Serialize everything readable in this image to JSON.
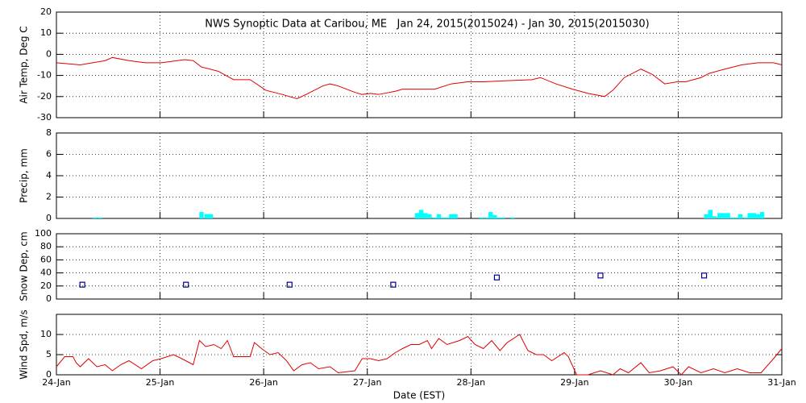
{
  "chart_data": [
    {
      "type": "line",
      "title": "NWS Synoptic Data at Caribou, ME   Jan 24, 2015(2015024) - Jan 30, 2015(2015030)",
      "ylabel": "Air Temp, Deg C",
      "color": "#e00000",
      "x": [
        24.0,
        24.23,
        24.47,
        24.54,
        24.7,
        24.86,
        25.01,
        25.24,
        25.32,
        25.4,
        25.56,
        25.71,
        25.87,
        26.02,
        26.18,
        26.32,
        26.41,
        26.57,
        26.64,
        26.72,
        26.88,
        26.95,
        27.03,
        27.11,
        27.27,
        27.34,
        27.65,
        27.81,
        27.97,
        28.12,
        28.35,
        28.59,
        28.67,
        28.82,
        28.98,
        29.13,
        29.29,
        29.37,
        29.48,
        29.64,
        29.75,
        29.87,
        29.99,
        30.07,
        30.22,
        30.3,
        30.45,
        30.61,
        30.77,
        30.92,
        31.0
      ],
      "values": [
        -4,
        -5,
        -3,
        -1.5,
        -3,
        -4,
        -4,
        -2.5,
        -3,
        -6,
        -8,
        -12,
        -12,
        -17,
        -19,
        -21,
        -19,
        -15,
        -14,
        -15,
        -18,
        -19,
        -18.5,
        -19,
        -17.5,
        -16.5,
        -16.5,
        -14,
        -13,
        -13,
        -12.5,
        -12,
        -11,
        -14,
        -16.5,
        -18.5,
        -20,
        -17,
        -11,
        -7,
        -9.5,
        -14,
        -13,
        -13,
        -11,
        -9,
        -7,
        -5,
        -4,
        -4,
        -5
      ],
      "xlim": [
        24,
        31
      ],
      "xticks": [
        24,
        25,
        26,
        27,
        28,
        29,
        30,
        31
      ],
      "ylim": [
        -30,
        20
      ],
      "yticks": [
        -30,
        -20,
        -10,
        0,
        10,
        20
      ],
      "grid": true
    },
    {
      "type": "bar",
      "ylabel": "Precip, mm",
      "color": "#00ffff",
      "x": [
        24.37,
        24.42,
        25.4,
        25.45,
        25.49,
        27.48,
        27.52,
        27.56,
        27.6,
        27.65,
        27.69,
        27.73,
        27.77,
        27.81,
        27.85,
        28.1,
        28.15,
        28.19,
        28.23,
        28.27,
        28.31,
        28.4,
        30.27,
        30.31,
        30.35,
        30.4,
        30.44,
        30.48,
        30.52,
        30.56,
        30.6,
        30.65,
        30.69,
        30.73,
        30.77,
        30.81
      ],
      "values": [
        0.1,
        0.1,
        0.6,
        0.4,
        0.4,
        0.5,
        0.8,
        0.5,
        0.4,
        0.1,
        0.4,
        0.1,
        0.1,
        0.4,
        0.4,
        0.1,
        0.1,
        0.6,
        0.3,
        0.1,
        0.1,
        0.1,
        0.4,
        0.8,
        0.2,
        0.5,
        0.5,
        0.5,
        0.1,
        0.1,
        0.4,
        0.1,
        0.5,
        0.5,
        0.4,
        0.6
      ],
      "xlim": [
        24,
        31
      ],
      "xticks": [
        24,
        25,
        26,
        27,
        28,
        29,
        30,
        31
      ],
      "ylim": [
        0,
        8
      ],
      "yticks": [
        0,
        2,
        4,
        6,
        8
      ],
      "grid": true
    },
    {
      "type": "scatter",
      "ylabel": "Snow Dep, cm",
      "color": "#00008b",
      "x": [
        24.25,
        25.25,
        26.25,
        27.25,
        28.25,
        29.25,
        30.25
      ],
      "values": [
        22,
        22,
        22,
        22,
        33,
        36,
        36
      ],
      "xlim": [
        24,
        31
      ],
      "xticks": [
        24,
        25,
        26,
        27,
        28,
        29,
        30,
        31
      ],
      "ylim": [
        0,
        100
      ],
      "yticks": [
        0,
        20,
        40,
        60,
        80,
        100
      ],
      "grid": true
    },
    {
      "type": "line",
      "ylabel": "Wind Spd, m/s",
      "xlabel": "Date (EST)",
      "color": "#e00000",
      "x": [
        24.0,
        24.08,
        24.16,
        24.19,
        24.23,
        24.31,
        24.39,
        24.47,
        24.54,
        24.62,
        24.7,
        24.82,
        24.93,
        25.01,
        25.13,
        25.21,
        25.32,
        25.38,
        25.44,
        25.52,
        25.59,
        25.65,
        25.71,
        25.87,
        25.91,
        25.98,
        26.06,
        26.14,
        26.22,
        26.29,
        26.37,
        26.45,
        26.53,
        26.64,
        26.72,
        26.88,
        26.95,
        27.03,
        27.11,
        27.19,
        27.27,
        27.34,
        27.42,
        27.5,
        27.58,
        27.62,
        27.69,
        27.77,
        27.89,
        27.97,
        28.04,
        28.12,
        28.2,
        28.28,
        28.35,
        28.47,
        28.55,
        28.63,
        28.7,
        28.78,
        28.9,
        28.94,
        29.02,
        29.13,
        29.25,
        29.37,
        29.44,
        29.52,
        29.64,
        29.72,
        29.83,
        29.95,
        30.03,
        30.1,
        30.22,
        30.34,
        30.45,
        30.57,
        30.69,
        30.8,
        30.92,
        31.0
      ],
      "values": [
        2,
        4.5,
        4.5,
        3,
        2,
        4,
        2,
        2.5,
        1,
        2.5,
        3.5,
        1.5,
        3.5,
        4,
        5,
        4,
        2.5,
        8.5,
        7,
        7.5,
        6.5,
        8.5,
        4.5,
        4.5,
        8,
        6.5,
        5,
        5.5,
        3.5,
        1,
        2.5,
        3,
        1.5,
        2,
        0.5,
        1,
        4,
        4,
        3.5,
        4,
        5.5,
        6.5,
        7.5,
        7.5,
        8.5,
        6.5,
        9,
        7.5,
        8.5,
        9.5,
        7.5,
        6.5,
        8.5,
        6,
        8,
        10,
        6,
        5,
        5,
        3.5,
        5.5,
        4.5,
        0,
        0,
        1,
        0,
        1.5,
        0.5,
        3,
        0.5,
        1,
        2,
        0,
        2,
        0.5,
        1.5,
        0.5,
        1.5,
        0.5,
        0.5,
        4,
        6.5
      ],
      "xlim": [
        24,
        31
      ],
      "xticks": [
        {
          "value": 24,
          "label": "24-Jan"
        },
        {
          "value": 25,
          "label": "25-Jan"
        },
        {
          "value": 26,
          "label": "26-Jan"
        },
        {
          "value": 27,
          "label": "27-Jan"
        },
        {
          "value": 28,
          "label": "28-Jan"
        },
        {
          "value": 29,
          "label": "29-Jan"
        },
        {
          "value": 30,
          "label": "30-Jan"
        },
        {
          "value": 31,
          "label": "31-Jan"
        }
      ],
      "ylim": [
        0,
        15
      ],
      "yticks": [
        0,
        5,
        10
      ],
      "grid": true
    }
  ]
}
